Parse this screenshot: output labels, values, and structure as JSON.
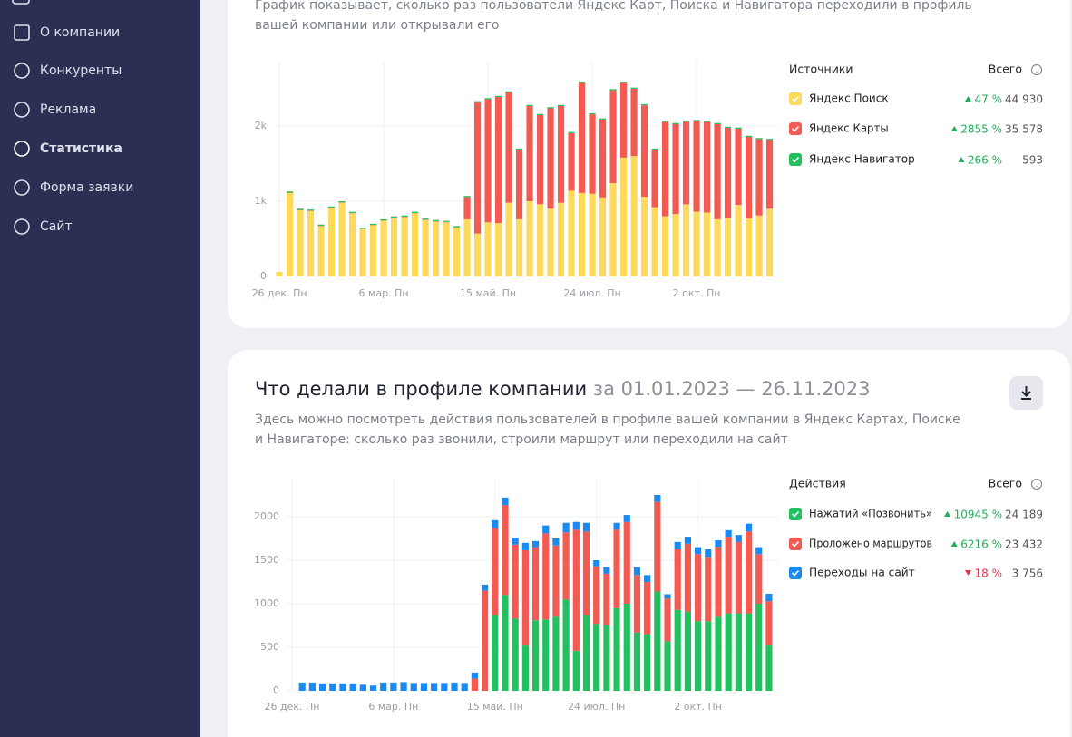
{
  "sidebar": {
    "items": [
      "О компании",
      "Конкуренты",
      "Реклама",
      "Статистика",
      "Форма заявки",
      "Сайт"
    ],
    "active": 3
  },
  "panel1": {
    "description": [
      "График показывает, сколько раз пользователи Яндекс Карт, Поиска и Навигатора переходили в профиль",
      "вашей компании или открывали его"
    ]
  },
  "panel2": {
    "title": "Что делали в профиле компании",
    "period": "за 01.01.2023 — 26.11.2023",
    "description": [
      "Здесь можно посмотреть действия пользователей в профиле вашей компании в Яндекс Картах, Поиске",
      "и Навигаторе: сколько раз звонили, строили маршрут или переходили на сайт"
    ]
  },
  "chart_data": [
    {
      "type": "bar",
      "stacked": true,
      "legend_title": "Источники",
      "total_label": "Всего",
      "grid": true,
      "categories": [
        "26 дек. Пн",
        null,
        null,
        null,
        null,
        null,
        null,
        null,
        null,
        null,
        "6 мар. Пн",
        null,
        null,
        null,
        null,
        null,
        null,
        null,
        null,
        null,
        "15 май. Пн",
        null,
        null,
        null,
        null,
        null,
        null,
        null,
        null,
        null,
        "24 июл. Пн",
        null,
        null,
        null,
        null,
        null,
        null,
        null,
        null,
        null,
        "2 окт. Пн",
        null,
        null,
        null,
        null,
        null,
        null,
        null
      ],
      "ylim": [
        0,
        2800
      ],
      "yticks": [
        0,
        {
          "value": 1000,
          "label": "1k"
        },
        {
          "value": 2000,
          "label": "2k"
        }
      ],
      "series": [
        {
          "name": "Яндекс Поиск",
          "color": "#fdd95c",
          "change": "47 %",
          "trend": "up",
          "total": "44 930",
          "values": [
            60,
            1110,
            880,
            870,
            670,
            910,
            980,
            840,
            630,
            680,
            740,
            780,
            790,
            840,
            750,
            730,
            720,
            650,
            760,
            570,
            720,
            710,
            980,
            760,
            1000,
            960,
            900,
            980,
            1140,
            1110,
            1100,
            1050,
            1240,
            1580,
            1600,
            1060,
            920,
            800,
            830,
            960,
            860,
            850,
            760,
            780,
            950,
            770,
            810,
            900
          ]
        },
        {
          "name": "Яндекс Карты",
          "color": "#f35b52",
          "change": "2855 %",
          "trend": "up",
          "total": "35 578",
          "values": [
            0,
            5,
            5,
            5,
            5,
            5,
            5,
            5,
            5,
            5,
            5,
            5,
            5,
            5,
            5,
            5,
            5,
            5,
            295,
            1745,
            1635,
            1675,
            1465,
            925,
            1265,
            1185,
            1335,
            1285,
            765,
            1465,
            1055,
            1035,
            1235,
            995,
            895,
            1215,
            765,
            1255,
            1195,
            1095,
            1205,
            1205,
            1265,
            1195,
            1015,
            1085,
            1015,
            915
          ]
        },
        {
          "name": "Яндекс Навигатор",
          "color": "#22c05e",
          "change": "266 %",
          "trend": "up",
          "total": "593",
          "values": [
            0,
            15,
            15,
            15,
            15,
            15,
            15,
            15,
            15,
            15,
            15,
            15,
            15,
            15,
            15,
            15,
            15,
            15,
            15,
            15,
            15,
            15,
            15,
            15,
            15,
            15,
            15,
            15,
            15,
            15,
            15,
            15,
            15,
            15,
            15,
            15,
            15,
            15,
            15,
            15,
            15,
            15,
            15,
            15,
            15,
            15,
            15,
            15
          ]
        }
      ]
    },
    {
      "type": "bar",
      "stacked": true,
      "legend_title": "Действия",
      "total_label": "Всего",
      "grid": true,
      "categories": [
        "26 дек. Пн",
        null,
        null,
        null,
        null,
        null,
        null,
        null,
        null,
        null,
        "6 мар. Пн",
        null,
        null,
        null,
        null,
        null,
        null,
        null,
        null,
        null,
        "15 май. Пн",
        null,
        null,
        null,
        null,
        null,
        null,
        null,
        null,
        null,
        "24 июл. Пн",
        null,
        null,
        null,
        null,
        null,
        null,
        null,
        null,
        null,
        "2 окт. Пн",
        null,
        null,
        null,
        null,
        null,
        null,
        null
      ],
      "ylim": [
        0,
        2400
      ],
      "yticks": [
        0,
        500,
        1000,
        1500,
        2000
      ],
      "series": [
        {
          "name": "Нажатий «Позвонить»",
          "color": "#22c05e",
          "change": "10945 %",
          "trend": "up",
          "total": "24 189",
          "values": [
            0,
            0,
            0,
            0,
            0,
            0,
            0,
            0,
            0,
            0,
            0,
            0,
            0,
            0,
            0,
            0,
            0,
            0,
            0,
            0,
            875,
            1100,
            830,
            520,
            810,
            820,
            850,
            1050,
            460,
            875,
            770,
            750,
            950,
            1000,
            670,
            650,
            1140,
            570,
            930,
            910,
            800,
            800,
            850,
            890,
            890,
            890,
            1000,
            520
          ]
        },
        {
          "name": "Проложено маршрутов",
          "color": "#f35b52",
          "change": "6216 %",
          "trend": "up",
          "total": "23 432",
          "values": [
            0,
            0,
            0,
            0,
            0,
            0,
            0,
            0,
            0,
            0,
            0,
            0,
            0,
            0,
            0,
            0,
            0,
            0,
            140,
            1150,
            1000,
            1035,
            850,
            1095,
            840,
            990,
            820,
            770,
            1390,
            955,
            660,
            595,
            900,
            940,
            660,
            600,
            1030,
            490,
            695,
            780,
            770,
            740,
            805,
            880,
            820,
            940,
            570,
            510
          ]
        },
        {
          "name": "Переходы на сайт",
          "color": "#1a8af0",
          "change": "18 %",
          "trend": "down",
          "total": "3 756",
          "values": [
            0,
            95,
            95,
            85,
            85,
            85,
            85,
            70,
            60,
            95,
            95,
            100,
            90,
            90,
            90,
            90,
            95,
            90,
            70,
            70,
            85,
            85,
            80,
            85,
            70,
            90,
            80,
            110,
            90,
            100,
            70,
            75,
            80,
            80,
            90,
            80,
            80,
            50,
            85,
            80,
            80,
            85,
            75,
            75,
            80,
            90,
            80,
            85
          ]
        }
      ]
    }
  ]
}
